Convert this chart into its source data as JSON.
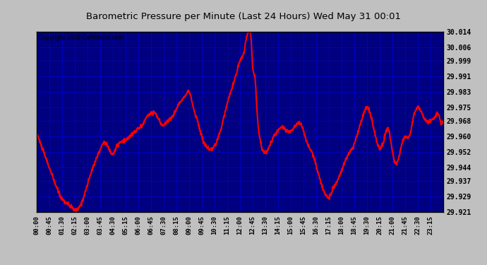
{
  "title": "Barometric Pressure per Minute (Last 24 Hours) Wed May 31 00:01",
  "copyright": "Copyright 2006 Cartronics.com",
  "background_color": "#000080",
  "line_color": "#ff0000",
  "grid_color": "#0000ff",
  "title_color": "#000000",
  "yticks": [
    29.921,
    29.929,
    29.937,
    29.944,
    29.952,
    29.96,
    29.968,
    29.975,
    29.983,
    29.991,
    29.999,
    30.006,
    30.014
  ],
  "ylim": [
    29.921,
    30.014
  ],
  "xtick_labels": [
    "00:00",
    "00:45",
    "01:30",
    "02:15",
    "03:00",
    "03:45",
    "04:30",
    "05:15",
    "06:00",
    "06:45",
    "07:30",
    "08:15",
    "09:00",
    "09:45",
    "10:30",
    "11:15",
    "12:00",
    "12:45",
    "13:30",
    "14:15",
    "15:00",
    "15:45",
    "16:30",
    "17:15",
    "18:00",
    "18:45",
    "19:30",
    "20:15",
    "21:00",
    "21:45",
    "22:30",
    "23:15"
  ],
  "outer_bg": "#c0c0c0",
  "line_width": 1.5,
  "control_points_t": [
    0,
    30,
    60,
    90,
    120,
    135,
    150,
    165,
    180,
    195,
    210,
    225,
    240,
    255,
    270,
    285,
    300,
    315,
    330,
    345,
    360,
    375,
    390,
    405,
    420,
    435,
    450,
    465,
    480,
    495,
    510,
    525,
    540,
    555,
    570,
    585,
    600,
    615,
    630,
    645,
    660,
    675,
    690,
    705,
    720,
    735,
    745,
    750,
    760,
    765,
    775,
    780,
    790,
    800,
    810,
    825,
    840,
    855,
    870,
    885,
    900,
    915,
    930,
    945,
    960,
    975,
    990,
    1005,
    1020,
    1035,
    1050,
    1065,
    1080,
    1095,
    1110,
    1125,
    1140,
    1155,
    1170,
    1185,
    1200,
    1215,
    1230,
    1245,
    1260,
    1275,
    1290,
    1305,
    1320,
    1335,
    1350,
    1365,
    1380,
    1395,
    1410,
    1420,
    1430,
    1440
  ],
  "control_points_p": [
    29.962,
    29.95,
    29.938,
    29.928,
    29.924,
    29.922,
    29.923,
    29.928,
    29.935,
    29.942,
    29.948,
    29.953,
    29.957,
    29.954,
    29.951,
    29.955,
    29.957,
    29.958,
    29.96,
    29.962,
    29.964,
    29.966,
    29.97,
    29.972,
    29.972,
    29.968,
    29.966,
    29.968,
    29.97,
    29.974,
    29.978,
    29.981,
    29.983,
    29.975,
    29.968,
    29.96,
    29.955,
    29.953,
    29.955,
    29.96,
    29.968,
    29.977,
    29.984,
    29.991,
    29.999,
    30.004,
    30.012,
    30.014,
    30.01,
    29.997,
    29.988,
    29.975,
    29.96,
    29.953,
    29.952,
    29.955,
    29.96,
    29.963,
    29.965,
    29.963,
    29.963,
    29.965,
    29.967,
    29.963,
    29.956,
    29.952,
    29.945,
    29.937,
    29.931,
    29.929,
    29.933,
    29.937,
    29.942,
    29.948,
    29.952,
    29.956,
    29.963,
    29.97,
    29.975,
    29.97,
    29.96,
    29.954,
    29.958,
    29.964,
    29.952,
    29.946,
    29.954,
    29.96,
    29.96,
    29.97,
    29.975,
    29.972,
    29.968,
    29.968,
    29.97,
    29.972,
    29.968,
    29.968
  ]
}
